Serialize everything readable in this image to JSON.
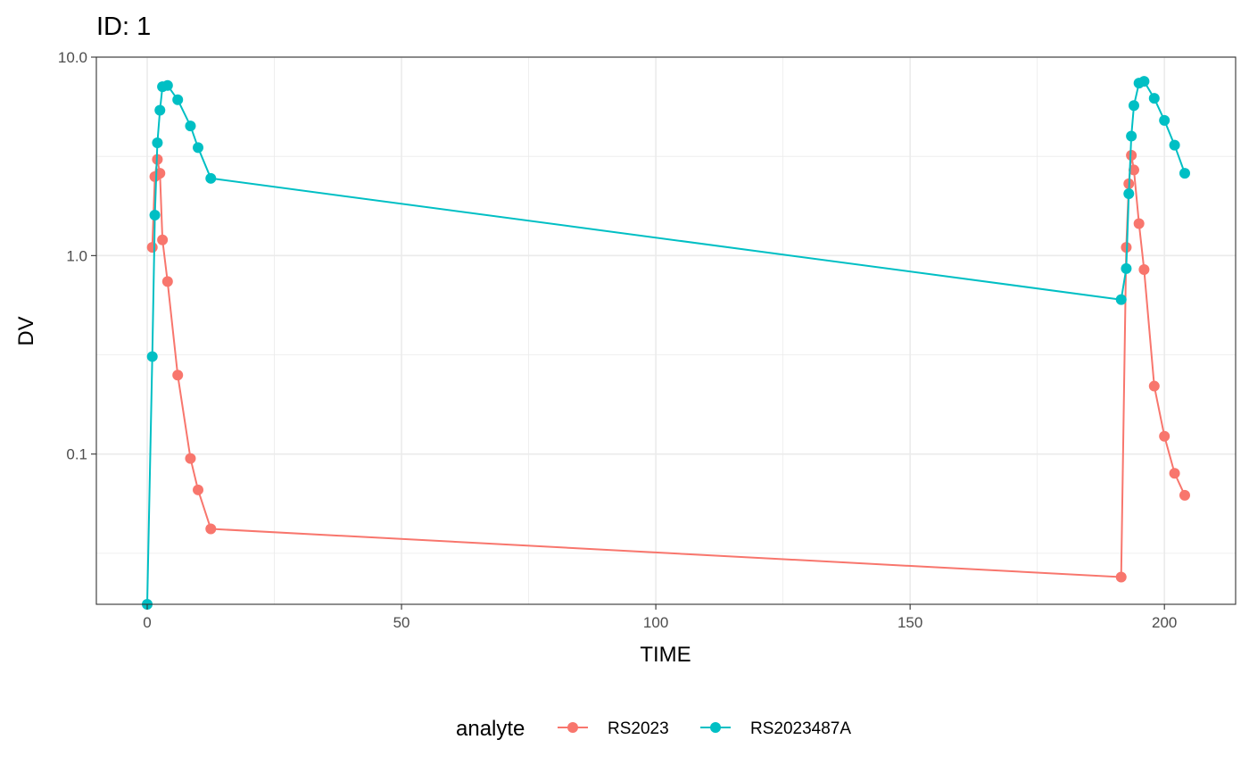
{
  "chart_data": {
    "type": "line",
    "title": "ID: 1",
    "xlabel": "TIME",
    "ylabel": "DV",
    "y_scale": "log10",
    "xlim": [
      -10,
      214
    ],
    "ylim": [
      0.0175,
      10.0
    ],
    "x_ticks": [
      0,
      50,
      100,
      150,
      200
    ],
    "x_tick_labels": [
      "0",
      "50",
      "100",
      "150",
      "200"
    ],
    "y_ticks": [
      0.1,
      1.0,
      10.0
    ],
    "y_tick_labels": [
      "0.1",
      "1.0",
      "10.0"
    ],
    "grid": true,
    "legend_title": "analyte",
    "legend_position": "bottom",
    "series": [
      {
        "name": "RS2023",
        "color": "#F8766D",
        "x": [
          1,
          1.5,
          2,
          2.5,
          3,
          4,
          6,
          8.5,
          10,
          12.5,
          191.5,
          192.5,
          193,
          193.5,
          194,
          195,
          196,
          198,
          200,
          202,
          204
        ],
        "y": [
          1.1,
          2.5,
          3.05,
          2.6,
          1.2,
          0.74,
          0.25,
          0.095,
          0.066,
          0.042,
          0.024,
          1.1,
          2.3,
          3.2,
          2.7,
          1.45,
          0.85,
          0.22,
          0.123,
          0.08,
          0.062
        ]
      },
      {
        "name": "RS2023487A",
        "color": "#00BFC4",
        "x": [
          0,
          1,
          1.5,
          2,
          2.5,
          3,
          4,
          6,
          8.5,
          10,
          12.5,
          191.5,
          192.5,
          193,
          193.5,
          194,
          195,
          196,
          198,
          200,
          202,
          204
        ],
        "y": [
          0.0175,
          0.31,
          1.6,
          3.7,
          5.4,
          7.1,
          7.2,
          6.1,
          4.5,
          3.5,
          2.45,
          0.6,
          0.86,
          2.05,
          4.0,
          5.7,
          7.4,
          7.55,
          6.2,
          4.8,
          3.6,
          2.6
        ]
      }
    ]
  }
}
